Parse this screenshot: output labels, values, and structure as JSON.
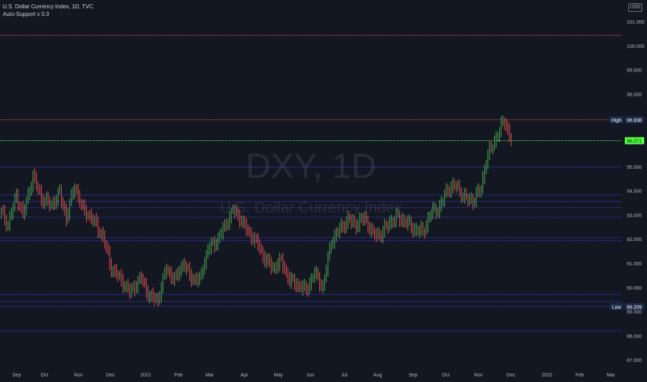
{
  "legend": {
    "title": "U.S. Dollar Currency Index, 1D, TVC",
    "indicator": "Auto-Support v 0.3"
  },
  "currency_label": "USD",
  "watermark": {
    "ticker": "DXY, 1D",
    "description": "U.S. Dollar Currency Index"
  },
  "colors": {
    "background": "#131722",
    "up": "#26a69a",
    "up_bar": "#4caf50",
    "down": "#ef5350",
    "resistance": "#ef5350",
    "support": "#3f3fe8",
    "last_price": "#4cff3a",
    "axis_text": "#b2b5be",
    "label_bg": "#1e2a4a"
  },
  "chart_data": {
    "type": "ohlc",
    "xlabels": [
      "Sep",
      "Oct",
      "Nov",
      "Dec",
      "2021",
      "Feb",
      "Mar",
      "Apr",
      "May",
      "Jun",
      "Jul",
      "Aug",
      "Sep",
      "Oct",
      "Nov",
      "Dec",
      "2022",
      "Feb",
      "Mar"
    ],
    "ylim": [
      86.75,
      101.5
    ],
    "yticks": [
      "87.000",
      "88.000",
      "89.000",
      "90.000",
      "91.000",
      "92.000",
      "93.000",
      "94.000",
      "95.000",
      "96.000",
      "97.000",
      "98.000",
      "99.000",
      "100.000",
      "101.000"
    ],
    "price_markers": [
      {
        "label": "High",
        "value": "96.938"
      },
      {
        "label": "",
        "value": "96.071"
      },
      {
        "label": "Low",
        "value": "89.209"
      }
    ],
    "resistance_levels": [
      100.43,
      96.938
    ],
    "last_price_level": 96.071,
    "support_levels": [
      94.98,
      93.82,
      93.55,
      93.3,
      92.9,
      92.06,
      91.93,
      89.71,
      89.42,
      89.209,
      88.19
    ],
    "price_path": [
      [
        0,
        93.1
      ],
      [
        4,
        92.6
      ],
      [
        9,
        93.8
      ],
      [
        13,
        93.0
      ],
      [
        19,
        94.6
      ],
      [
        24,
        93.7
      ],
      [
        30,
        93.4
      ],
      [
        35,
        93.9
      ],
      [
        39,
        92.9
      ],
      [
        44,
        94.2
      ],
      [
        49,
        93.2
      ],
      [
        54,
        92.9
      ],
      [
        61,
        92.1
      ],
      [
        66,
        90.8
      ],
      [
        72,
        90.3
      ],
      [
        77,
        89.8
      ],
      [
        84,
        90.4
      ],
      [
        89,
        89.6
      ],
      [
        94,
        89.5
      ],
      [
        99,
        90.8
      ],
      [
        104,
        90.3
      ],
      [
        109,
        91.0
      ],
      [
        114,
        90.4
      ],
      [
        119,
        90.3
      ],
      [
        124,
        91.6
      ],
      [
        129,
        91.9
      ],
      [
        134,
        92.5
      ],
      [
        139,
        93.2
      ],
      [
        143,
        92.9
      ],
      [
        148,
        92.3
      ],
      [
        153,
        91.9
      ],
      [
        158,
        91.2
      ],
      [
        163,
        90.8
      ],
      [
        168,
        91.1
      ],
      [
        173,
        90.3
      ],
      [
        178,
        90.1
      ],
      [
        183,
        89.9
      ],
      [
        188,
        90.6
      ],
      [
        193,
        90.0
      ],
      [
        198,
        91.9
      ],
      [
        203,
        92.4
      ],
      [
        208,
        92.8
      ],
      [
        213,
        92.6
      ],
      [
        218,
        92.9
      ],
      [
        223,
        92.2
      ],
      [
        228,
        92.2
      ],
      [
        233,
        92.7
      ],
      [
        238,
        92.9
      ],
      [
        243,
        92.7
      ],
      [
        248,
        92.4
      ],
      [
        253,
        92.3
      ],
      [
        258,
        93.1
      ],
      [
        263,
        93.3
      ],
      [
        268,
        94.1
      ],
      [
        273,
        94.2
      ],
      [
        278,
        93.7
      ],
      [
        283,
        93.6
      ],
      [
        288,
        94.1
      ],
      [
        291,
        95.3
      ],
      [
        295,
        95.9
      ],
      [
        299,
        96.5
      ],
      [
        302,
        96.9
      ],
      [
        306,
        96.1
      ]
    ]
  }
}
